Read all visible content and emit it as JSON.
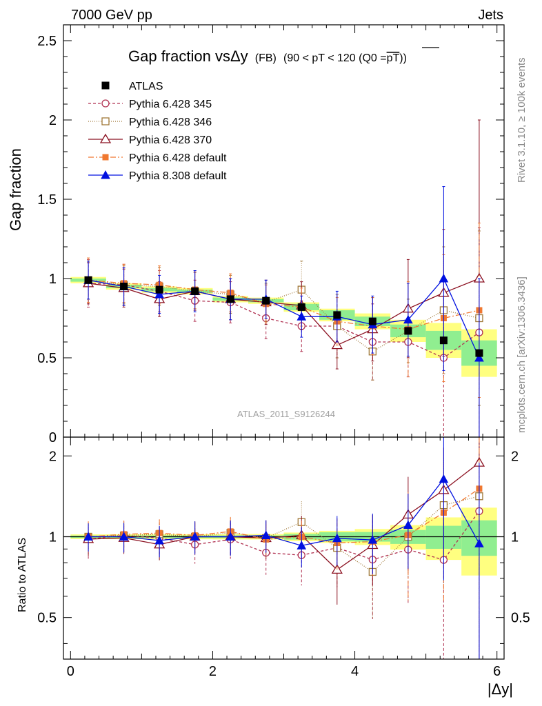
{
  "header": {
    "left": "7000 GeV pp",
    "right": "Jets"
  },
  "side_labels": {
    "rivet": "Rivet 3.1.10, ≥ 100k events",
    "mcplots": "mcplots.cern.ch [arXiv:1306.3436]"
  },
  "chart_data": {
    "type": "scatter",
    "title": "Gap fraction vsΔy (FB) (90 < pT < 120 (Q0 =pT))",
    "title_parts": {
      "main": "Gap fraction vs",
      "delta": "Δy",
      "paren1": "(FB)",
      "paren2": "(90 < pT < 120 (Q0 =",
      "overline": "pT",
      "close": "))"
    },
    "watermark": "ATLAS_2011_S9126244",
    "xlabel": "|Δy|",
    "ylabel_top": "Gap fraction",
    "ylabel_bottom": "Ratio to ATLAS",
    "xlim": [
      -0.1,
      6.1
    ],
    "ylim_top": [
      0,
      2.6
    ],
    "ylim_bottom": [
      0.35,
      2.35
    ],
    "x_ticks": [
      "0",
      "2",
      "4",
      "6"
    ],
    "y_ticks_top": [
      "0",
      "0.5",
      "1",
      "1.5",
      "2",
      "2.5"
    ],
    "y_ticks_bottom": [
      "0.5",
      "1",
      "2"
    ],
    "x": [
      0.25,
      0.75,
      1.25,
      1.75,
      2.25,
      2.75,
      3.25,
      3.75,
      4.25,
      4.75,
      5.25,
      5.75
    ],
    "data_series": {
      "name": "ATLAS",
      "values": [
        0.99,
        0.95,
        0.93,
        0.92,
        0.87,
        0.86,
        0.82,
        0.77,
        0.73,
        0.67,
        0.61,
        0.53
      ],
      "band_outer": [
        0.02,
        0.02,
        0.02,
        0.02,
        0.02,
        0.02,
        0.03,
        0.04,
        0.05,
        0.07,
        0.11,
        0.15
      ],
      "band_inner": [
        0.01,
        0.01,
        0.01,
        0.01,
        0.01,
        0.01,
        0.02,
        0.03,
        0.03,
        0.04,
        0.06,
        0.08
      ]
    },
    "series": [
      {
        "name": "Pythia 6.428 345",
        "color": "#b03050",
        "dash": "4,3",
        "marker": "circle-open",
        "values": [
          0.97,
          0.96,
          0.92,
          0.86,
          0.85,
          0.75,
          0.7,
          0.7,
          0.6,
          0.6,
          0.5,
          0.66
        ],
        "errors": [
          0.15,
          0.13,
          0.13,
          0.13,
          0.13,
          0.13,
          0.16,
          0.2,
          0.24,
          0.22,
          0.5,
          0.66
        ]
      },
      {
        "name": "Pythia 6.428 346",
        "color": "#a07838",
        "dash": "1,2",
        "marker": "square-open",
        "values": [
          0.99,
          0.96,
          0.95,
          0.92,
          0.9,
          0.85,
          0.93,
          0.7,
          0.54,
          0.67,
          0.8,
          0.75
        ],
        "errors": [
          0.12,
          0.12,
          0.12,
          0.12,
          0.12,
          0.12,
          0.18,
          0.2,
          0.18,
          0.2,
          0.4,
          0.55
        ]
      },
      {
        "name": "Pythia 6.428 370",
        "color": "#8b1020",
        "dash": "",
        "marker": "triangle-open",
        "values": [
          0.97,
          0.94,
          0.87,
          0.92,
          0.87,
          0.85,
          0.83,
          0.58,
          0.68,
          0.81,
          0.91,
          1.0
        ],
        "errors": [
          0.13,
          0.12,
          0.11,
          0.12,
          0.13,
          0.14,
          0.15,
          0.15,
          0.2,
          0.31,
          0.4,
          1.0
        ]
      },
      {
        "name": "Pythia 6.428 default",
        "color": "#f07830",
        "dash": "8,3,2,3",
        "marker": "square-filled",
        "values": [
          0.99,
          0.97,
          0.96,
          0.93,
          0.91,
          0.84,
          0.82,
          0.73,
          0.7,
          0.68,
          0.75,
          0.8
        ],
        "errors": [
          0.14,
          0.12,
          0.12,
          0.12,
          0.12,
          0.12,
          0.12,
          0.15,
          0.18,
          0.3,
          0.4,
          0.55
        ]
      },
      {
        "name": "Pythia 8.308 default",
        "color": "#0010e0",
        "dash": "",
        "marker": "triangle-filled",
        "values": [
          0.99,
          0.95,
          0.9,
          0.92,
          0.87,
          0.87,
          0.76,
          0.76,
          0.71,
          0.74,
          1.0,
          0.5
        ],
        "errors": [
          0.12,
          0.12,
          0.12,
          0.13,
          0.13,
          0.12,
          0.13,
          0.16,
          0.18,
          0.23,
          0.58,
          0.5
        ]
      }
    ]
  }
}
